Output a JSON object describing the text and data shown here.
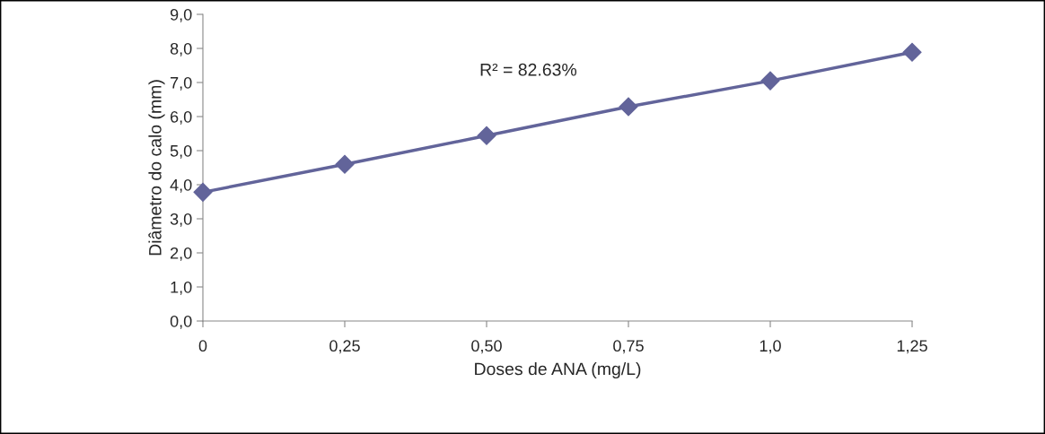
{
  "chart_data": {
    "type": "line",
    "xlabel": "Doses de ANA (mg/L)",
    "ylabel": "Diâmetro do calo (mm)",
    "categories": [
      "0",
      "0,25",
      "0,50",
      "0,75",
      "1,0",
      "1,25"
    ],
    "series": [
      {
        "color": "#62649a",
        "values": [
          3.78,
          4.6,
          5.44,
          6.29,
          7.05,
          7.89
        ]
      }
    ],
    "ylim": [
      0,
      9
    ],
    "yticks": [
      {
        "value": 0,
        "label": "0,0"
      },
      {
        "value": 1,
        "label": "1,0"
      },
      {
        "value": 2,
        "label": "2,0"
      },
      {
        "value": 3,
        "label": "3,0"
      },
      {
        "value": 4,
        "label": "4,0"
      },
      {
        "value": 5,
        "label": "5,0"
      },
      {
        "value": 6,
        "label": "6,0"
      },
      {
        "value": 7,
        "label": "7,0"
      },
      {
        "value": 8,
        "label": "8,0"
      },
      {
        "value": 9,
        "label": "9,0"
      }
    ],
    "annotations": [
      "R² = 82.63%"
    ],
    "grid": false,
    "legend": false,
    "marker": "diamond",
    "line_style": "solid"
  }
}
